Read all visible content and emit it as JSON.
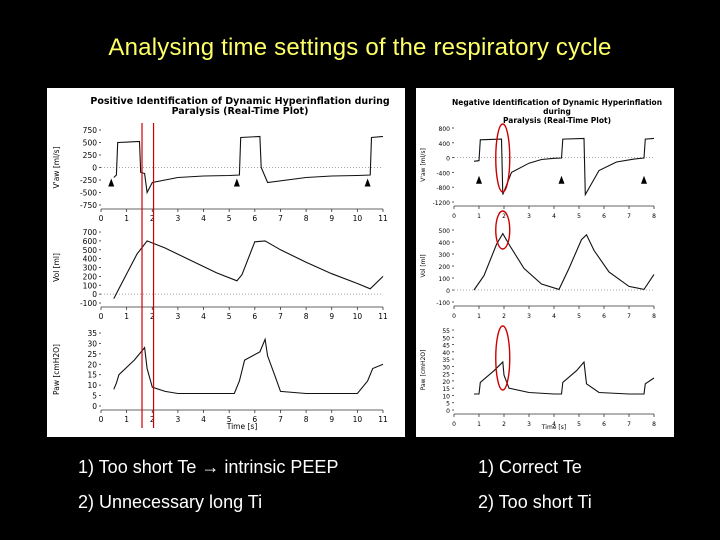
{
  "slide": {
    "title": "Analysing time settings of the respiratory cycle",
    "left_text": [
      "1) Too short Te → intrinsic PEEP",
      "2) Unnecessary long Ti"
    ],
    "right_text": [
      "1) Correct Te",
      "2) Too short Ti"
    ]
  },
  "left_plot": {
    "title_line1": "Positive Identification of Dynamic Hyperinflation during",
    "title_line2": "Paralysis (Real-Time Plot)",
    "x_label": "Time [s]",
    "x_ticks": [
      "0",
      "1",
      "2",
      "3",
      "4",
      "5",
      "6",
      "7",
      "8",
      "9",
      "10",
      "11"
    ],
    "highlight_color": "#cc0000",
    "graphs": [
      {
        "label": "V'aw [ml/s]",
        "ticks": [
          "750",
          "500",
          "250",
          "0",
          "-250",
          "-500",
          "-750"
        ],
        "ymin": -750,
        "ymax": 750,
        "trace": [
          [
            0.5,
            -200
          ],
          [
            0.6,
            -150
          ],
          [
            0.65,
            500
          ],
          [
            1.5,
            520
          ],
          [
            1.55,
            -100
          ],
          [
            1.7,
            -120
          ],
          [
            1.8,
            -500
          ],
          [
            2,
            -300
          ],
          [
            3,
            -200
          ],
          [
            4,
            -170
          ],
          [
            5,
            -160
          ],
          [
            5.4,
            -150
          ],
          [
            5.45,
            600
          ],
          [
            6.2,
            620
          ],
          [
            6.25,
            0
          ],
          [
            6.5,
            -300
          ],
          [
            8,
            -200
          ],
          [
            9,
            -170
          ],
          [
            10,
            -160
          ],
          [
            10.5,
            -150
          ],
          [
            10.55,
            600
          ],
          [
            11,
            620
          ]
        ]
      },
      {
        "label": "Vol [ml]",
        "ticks": [
          "700",
          "600",
          "500",
          "400",
          "300",
          "200",
          "100",
          "0",
          "-100"
        ],
        "ymin": -100,
        "ymax": 700,
        "trace": [
          [
            0.5,
            -50
          ],
          [
            0.7,
            60
          ],
          [
            1.4,
            450
          ],
          [
            1.8,
            600
          ],
          [
            2.5,
            520
          ],
          [
            3.5,
            380
          ],
          [
            4.5,
            240
          ],
          [
            5.3,
            150
          ],
          [
            5.5,
            220
          ],
          [
            6,
            590
          ],
          [
            6.4,
            600
          ],
          [
            7,
            500
          ],
          [
            8,
            360
          ],
          [
            9,
            230
          ],
          [
            10,
            120
          ],
          [
            10.5,
            60
          ],
          [
            11,
            200
          ]
        ]
      },
      {
        "label": "Paw [cmH2O]",
        "ticks": [
          "35",
          "30",
          "25",
          "20",
          "15",
          "10",
          "5",
          "0"
        ],
        "ymin": 0,
        "ymax": 35,
        "trace": [
          [
            0.5,
            8
          ],
          [
            0.6,
            11
          ],
          [
            0.7,
            15
          ],
          [
            1.3,
            22
          ],
          [
            1.7,
            28
          ],
          [
            1.8,
            18
          ],
          [
            2,
            9
          ],
          [
            2.5,
            7
          ],
          [
            3,
            6
          ],
          [
            4,
            6
          ],
          [
            5.2,
            6
          ],
          [
            5.4,
            12
          ],
          [
            5.6,
            22
          ],
          [
            6.2,
            26
          ],
          [
            6.4,
            32
          ],
          [
            6.5,
            24
          ],
          [
            6.8,
            14
          ],
          [
            7,
            7
          ],
          [
            8,
            6
          ],
          [
            10,
            6
          ],
          [
            10.4,
            12
          ],
          [
            10.6,
            18
          ],
          [
            11,
            20
          ]
        ]
      }
    ],
    "markers_x": [
      0.4,
      5.3,
      10.4
    ]
  },
  "right_plot": {
    "title_line1": "Negative Identification of Dynamic Hyperinflation during",
    "title_line2": "Paralysis (Real-Time Plot)",
    "x_label": "Time [s]",
    "x_ticks": [
      "0",
      "1",
      "2",
      "3",
      "4",
      "5",
      "6",
      "7",
      "8"
    ],
    "highlight_color": "#cc0000",
    "graphs": [
      {
        "label": "V'aw [ml/s]",
        "ticks": [
          "800",
          "400",
          "0",
          "-400",
          "-800",
          "-1200"
        ],
        "ymin": -1200,
        "ymax": 800,
        "trace": [
          [
            0.8,
            -100
          ],
          [
            1,
            -80
          ],
          [
            1.05,
            480
          ],
          [
            1.9,
            500
          ],
          [
            1.95,
            -1000
          ],
          [
            2.3,
            -400
          ],
          [
            3,
            -150
          ],
          [
            3.5,
            -50
          ],
          [
            4,
            -20
          ],
          [
            4.3,
            -10
          ],
          [
            4.35,
            500
          ],
          [
            5.2,
            520
          ],
          [
            5.25,
            -1000
          ],
          [
            5.8,
            -350
          ],
          [
            6.5,
            -120
          ],
          [
            7.2,
            -40
          ],
          [
            7.6,
            -10
          ],
          [
            7.65,
            500
          ],
          [
            8,
            520
          ]
        ]
      },
      {
        "label": "Vol [ml]",
        "ticks": [
          "500",
          "400",
          "300",
          "200",
          "100",
          "0",
          "-100"
        ],
        "ymin": -100,
        "ymax": 500,
        "trace": [
          [
            0.8,
            0
          ],
          [
            1.2,
            120
          ],
          [
            1.7,
            380
          ],
          [
            1.95,
            470
          ],
          [
            2.2,
            380
          ],
          [
            2.8,
            180
          ],
          [
            3.5,
            50
          ],
          [
            4.2,
            5
          ],
          [
            4.6,
            180
          ],
          [
            5.1,
            420
          ],
          [
            5.3,
            460
          ],
          [
            5.6,
            330
          ],
          [
            6.2,
            150
          ],
          [
            7,
            30
          ],
          [
            7.6,
            5
          ],
          [
            8,
            130
          ]
        ]
      },
      {
        "label": "Paw [cmH2O]",
        "ticks": [
          "55",
          "50",
          "45",
          "40",
          "35",
          "30",
          "25",
          "20",
          "15",
          "10",
          "5",
          "0"
        ],
        "ymin": 0,
        "ymax": 55,
        "trace": [
          [
            0.8,
            11
          ],
          [
            1,
            11
          ],
          [
            1.05,
            19
          ],
          [
            1.6,
            27
          ],
          [
            1.95,
            33
          ],
          [
            2,
            24
          ],
          [
            2.2,
            15
          ],
          [
            3,
            12
          ],
          [
            4,
            11
          ],
          [
            4.3,
            11
          ],
          [
            4.35,
            19
          ],
          [
            4.9,
            27
          ],
          [
            5.2,
            33
          ],
          [
            5.3,
            18
          ],
          [
            5.8,
            12
          ],
          [
            7,
            11
          ],
          [
            7.6,
            11
          ],
          [
            7.65,
            18
          ],
          [
            8,
            22
          ]
        ]
      }
    ],
    "markers_x": [
      1.0,
      4.3,
      7.6
    ]
  }
}
